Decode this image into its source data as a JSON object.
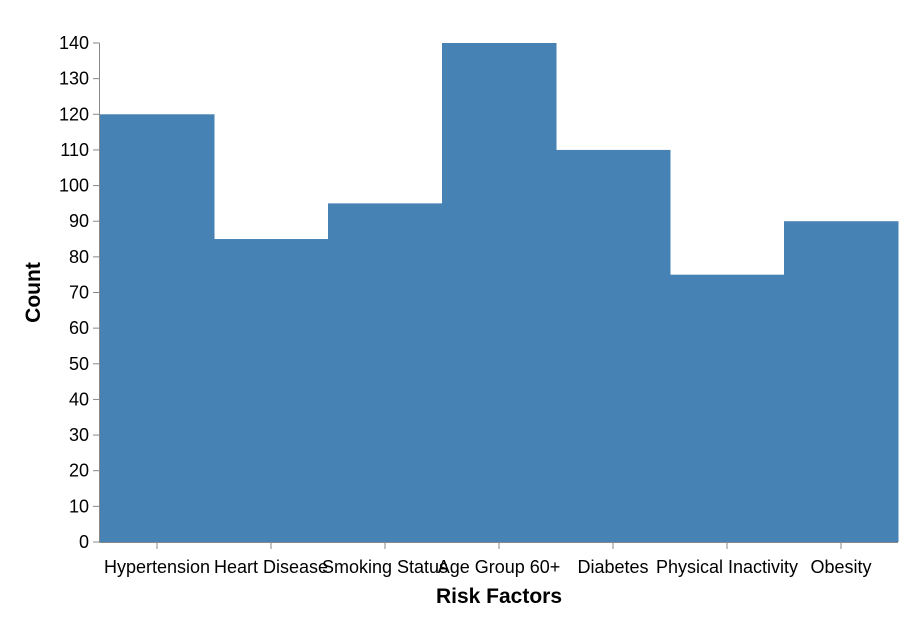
{
  "chart_data": {
    "type": "bar",
    "title": "",
    "xlabel": "Risk Factors",
    "ylabel": "Count",
    "categories": [
      "Hypertension",
      "Heart Disease",
      "Smoking Status",
      "Age Group 60+",
      "Diabetes",
      "Physical Inactivity",
      "Obesity"
    ],
    "values": [
      120,
      85,
      95,
      140,
      110,
      75,
      90
    ],
    "ylim": [
      0,
      140
    ],
    "yticks": [
      0,
      10,
      20,
      30,
      40,
      50,
      60,
      70,
      80,
      90,
      100,
      110,
      120,
      130,
      140
    ],
    "grid": false,
    "legend": "none",
    "bar_color": "#4682b4",
    "axis_color": "#888888"
  }
}
